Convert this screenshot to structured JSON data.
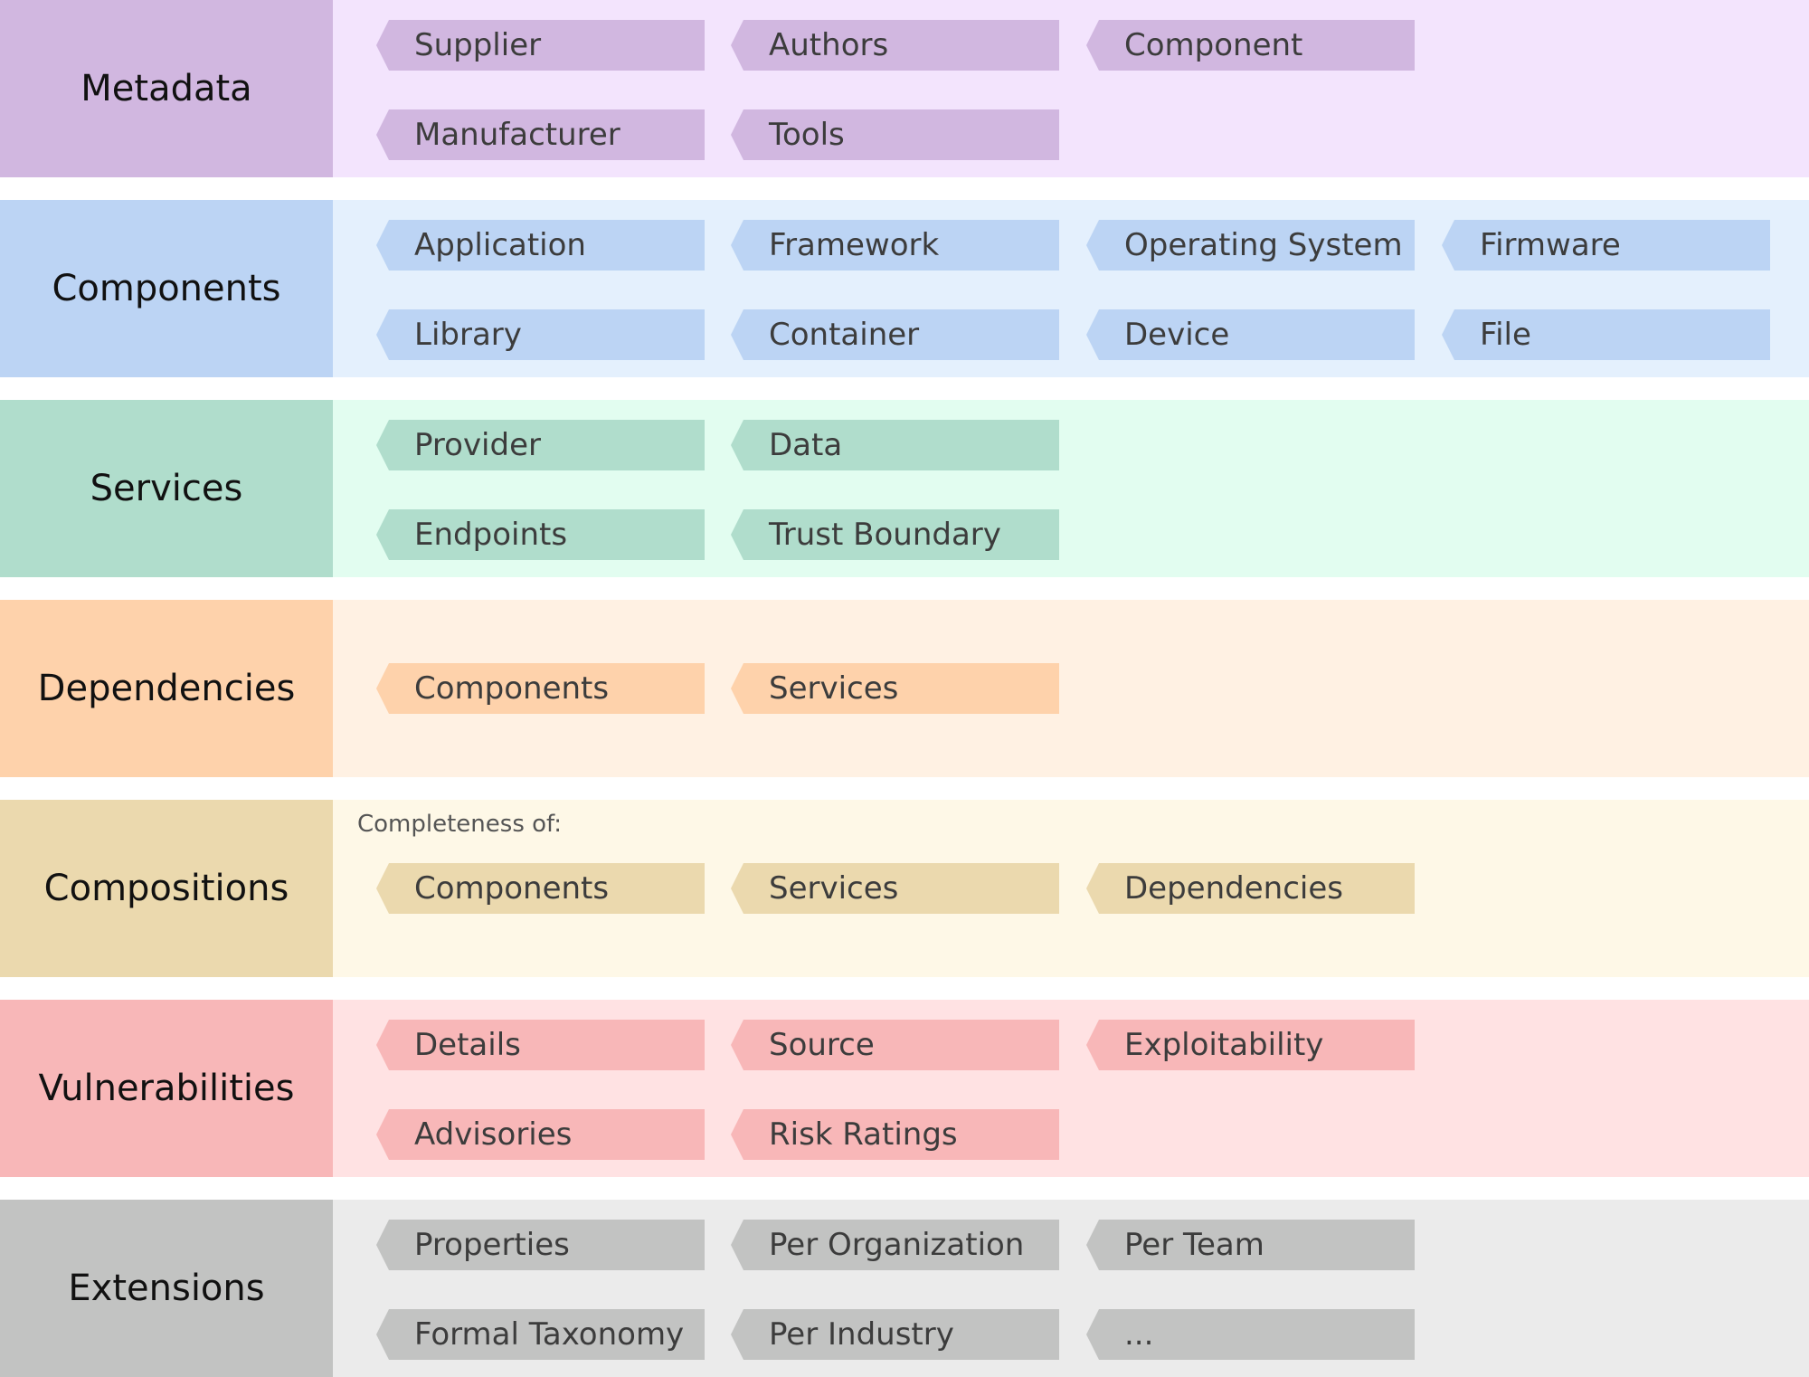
{
  "groups": [
    {
      "label": "Metadata",
      "colors": {
        "side": "#d1b7e0",
        "area": "#f3e4fd",
        "chip": "#d1b7e0"
      },
      "note": "",
      "rows": [
        [
          "Supplier",
          "Authors",
          "Component"
        ],
        [
          "Manufacturer",
          "Tools"
        ]
      ]
    },
    {
      "label": "Components",
      "colors": {
        "side": "#bcd4f4",
        "area": "#e4f0fd",
        "chip": "#bcd4f4"
      },
      "note": "",
      "rows": [
        [
          "Application",
          "Framework",
          "Operating System",
          "Firmware"
        ],
        [
          "Library",
          "Container",
          "Device",
          "File"
        ]
      ]
    },
    {
      "label": "Services",
      "colors": {
        "side": "#b0ddcc",
        "area": "#e2fdf0",
        "chip": "#b0ddcc"
      },
      "note": "",
      "rows": [
        [
          "Provider",
          "Data"
        ],
        [
          "Endpoints",
          "Trust Boundary"
        ]
      ]
    },
    {
      "label": "Dependencies",
      "colors": {
        "side": "#fed2ab",
        "area": "#fff1e3",
        "chip": "#fed2ab"
      },
      "note": "",
      "rows": [
        [
          "Components",
          "Services"
        ]
      ]
    },
    {
      "label": "Compositions",
      "colors": {
        "side": "#ebd9ae",
        "area": "#fef8e7",
        "chip": "#ebd9ae"
      },
      "note": "Completeness of:",
      "rows": [
        [
          "Components",
          "Services",
          "Dependencies"
        ]
      ]
    },
    {
      "label": "Vulnerabilities",
      "colors": {
        "side": "#f8b7b8",
        "area": "#ffe2e3",
        "chip": "#f8b7b8"
      },
      "note": "",
      "rows": [
        [
          "Details",
          "Source",
          "Exploitability"
        ],
        [
          "Advisories",
          "Risk Ratings"
        ]
      ]
    },
    {
      "label": "Extensions",
      "colors": {
        "side": "#c2c3c2",
        "area": "#ebebeb",
        "chip": "#c2c3c2"
      },
      "note": "",
      "rows": [
        [
          "Properties",
          "Per Organization",
          "Per Team"
        ],
        [
          "Formal Taxonomy",
          "Per Industry",
          "..."
        ]
      ]
    }
  ]
}
